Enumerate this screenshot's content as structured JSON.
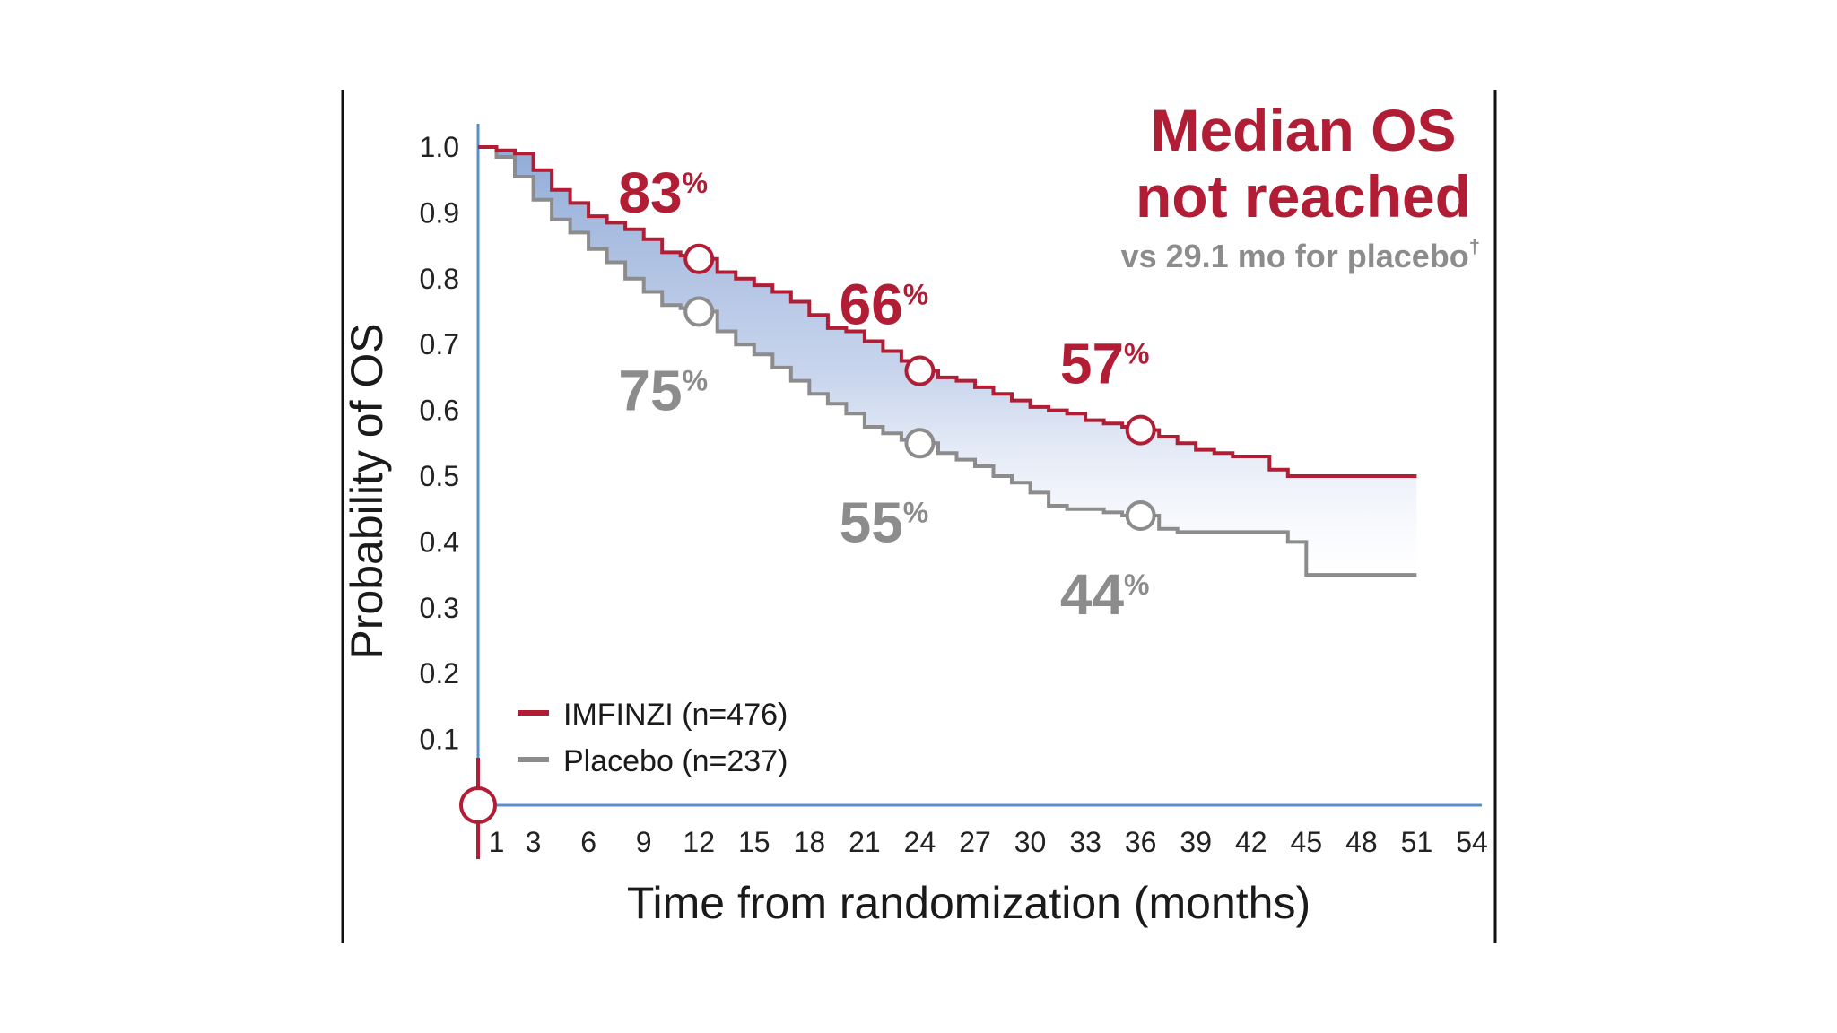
{
  "chart_data": {
    "type": "line",
    "subtype": "kaplan-meier",
    "title": "",
    "xlabel": "Time from randomization (months)",
    "ylabel": "Probability of OS",
    "xlim": [
      0,
      54
    ],
    "ylim": [
      0,
      1.0
    ],
    "x_ticks": [
      "1",
      "3",
      "6",
      "9",
      "12",
      "15",
      "18",
      "21",
      "24",
      "27",
      "30",
      "33",
      "36",
      "39",
      "42",
      "45",
      "48",
      "51",
      "54"
    ],
    "y_ticks": [
      "0.1",
      "0.2",
      "0.3",
      "0.4",
      "0.5",
      "0.6",
      "0.7",
      "0.8",
      "0.9",
      "1.0"
    ],
    "series": [
      {
        "name": "IMFINZI (n=476)",
        "color": "#b01d34",
        "x": [
          0,
          1,
          2,
          3,
          4,
          5,
          6,
          7,
          8,
          9,
          10,
          11,
          12,
          13,
          14,
          15,
          16,
          17,
          18,
          19,
          20,
          21,
          22,
          23,
          24,
          25,
          26,
          27,
          28,
          29,
          30,
          31,
          32,
          33,
          34,
          35,
          36,
          37,
          38,
          39,
          40,
          41,
          42,
          43,
          44,
          45,
          46,
          47,
          48,
          49,
          50,
          51
        ],
        "values": [
          1.0,
          0.995,
          0.99,
          0.965,
          0.935,
          0.915,
          0.895,
          0.885,
          0.875,
          0.86,
          0.84,
          0.835,
          0.83,
          0.81,
          0.8,
          0.79,
          0.78,
          0.765,
          0.745,
          0.725,
          0.72,
          0.705,
          0.69,
          0.675,
          0.66,
          0.65,
          0.645,
          0.635,
          0.625,
          0.615,
          0.605,
          0.6,
          0.595,
          0.585,
          0.58,
          0.575,
          0.57,
          0.56,
          0.55,
          0.54,
          0.535,
          0.53,
          0.53,
          0.51,
          0.5,
          0.5,
          0.5,
          0.5,
          0.5,
          0.5,
          0.5,
          0.5
        ]
      },
      {
        "name": "Placebo (n=237)",
        "color": "#8c8c8c",
        "x": [
          0,
          1,
          2,
          3,
          4,
          5,
          6,
          7,
          8,
          9,
          10,
          11,
          12,
          13,
          14,
          15,
          16,
          17,
          18,
          19,
          20,
          21,
          22,
          23,
          24,
          25,
          26,
          27,
          28,
          29,
          30,
          31,
          32,
          33,
          34,
          35,
          36,
          37,
          38,
          39,
          40,
          41,
          42,
          43,
          44,
          45,
          46,
          47,
          48,
          49,
          50,
          51
        ],
        "values": [
          1.0,
          0.985,
          0.955,
          0.92,
          0.89,
          0.87,
          0.845,
          0.825,
          0.8,
          0.78,
          0.76,
          0.755,
          0.75,
          0.72,
          0.7,
          0.685,
          0.665,
          0.645,
          0.625,
          0.61,
          0.595,
          0.575,
          0.565,
          0.555,
          0.55,
          0.535,
          0.525,
          0.515,
          0.5,
          0.49,
          0.475,
          0.455,
          0.45,
          0.45,
          0.445,
          0.44,
          0.44,
          0.42,
          0.415,
          0.415,
          0.415,
          0.415,
          0.415,
          0.415,
          0.4,
          0.35,
          0.35,
          0.35,
          0.35,
          0.35,
          0.35,
          0.35
        ]
      }
    ],
    "annotations": [
      {
        "series": "IMFINZI (n=476)",
        "x": 12,
        "y": 0.83,
        "label": "83",
        "suffix": "%"
      },
      {
        "series": "IMFINZI (n=476)",
        "x": 24,
        "y": 0.66,
        "label": "66",
        "suffix": "%"
      },
      {
        "series": "IMFINZI (n=476)",
        "x": 36,
        "y": 0.57,
        "label": "57",
        "suffix": "%"
      },
      {
        "series": "Placebo (n=237)",
        "x": 12,
        "y": 0.75,
        "label": "75",
        "suffix": "%"
      },
      {
        "series": "Placebo (n=237)",
        "x": 24,
        "y": 0.55,
        "label": "55",
        "suffix": "%"
      },
      {
        "series": "Placebo (n=237)",
        "x": 36,
        "y": 0.44,
        "label": "44",
        "suffix": "%"
      }
    ],
    "median_box": {
      "line1": "Median OS",
      "line2": "not reached",
      "subtitle": "vs 29.1 mo for placebo",
      "dagger": "†"
    },
    "legend_position": "bottom-left",
    "colors": {
      "imfinzi": "#b01d34",
      "placebo": "#8c8c8c",
      "axis": "#5b8fc9",
      "fill": "#8fa8d6"
    }
  }
}
